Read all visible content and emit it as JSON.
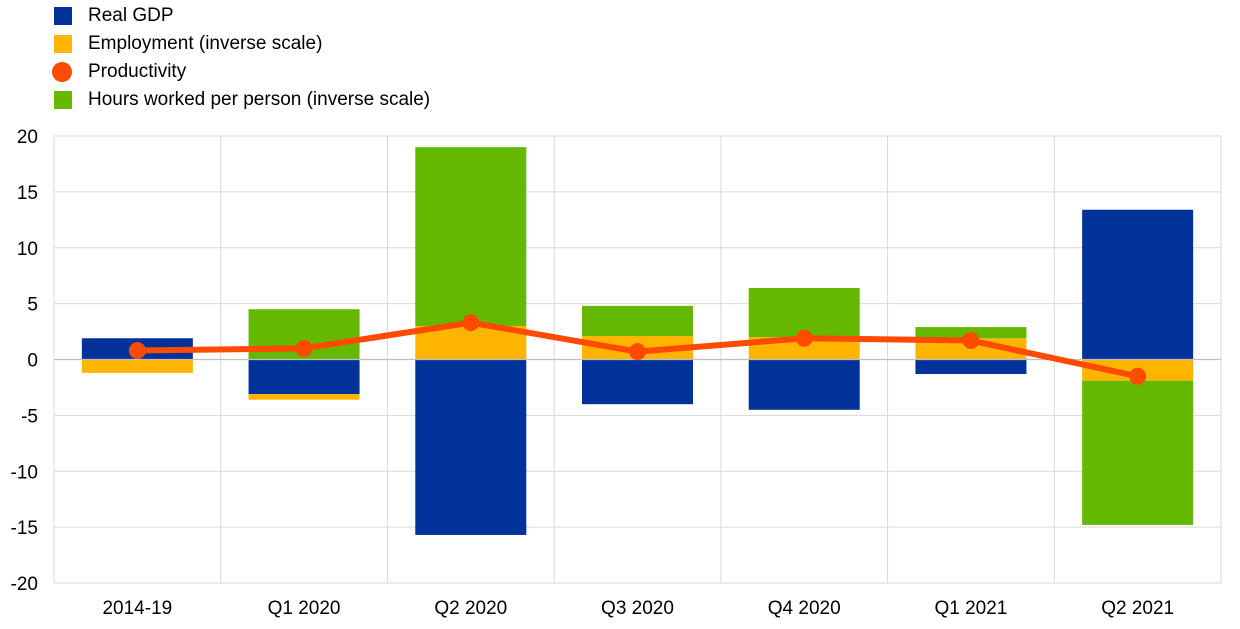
{
  "legend": [
    {
      "name": "Real GDP",
      "color": "#003299",
      "shape": "square"
    },
    {
      "name": "Employment (inverse scale)",
      "color": "#FFB400",
      "shape": "square"
    },
    {
      "name": "Productivity",
      "color": "#FF4B00",
      "shape": "circle"
    },
    {
      "name": "Hours worked per person (inverse scale)",
      "color": "#65B800",
      "shape": "square"
    }
  ],
  "chart_data": {
    "type": "bar",
    "stacked": true,
    "categories": [
      "2014-19",
      "Q1 2020",
      "Q2 2020",
      "Q3 2020",
      "Q4 2020",
      "Q1 2021",
      "Q2 2021"
    ],
    "ylim": [
      -20,
      20
    ],
    "yticks": [
      -20,
      -15,
      -10,
      -5,
      0,
      5,
      10,
      15,
      20
    ],
    "grid": true,
    "legend_position": "top-left",
    "series": [
      {
        "name": "Real GDP",
        "type": "bar",
        "color": "#003299",
        "values": [
          1.9,
          -3.1,
          -15.7,
          -4.0,
          -4.5,
          -1.3,
          13.4
        ]
      },
      {
        "name": "Employment (inverse scale)",
        "type": "bar",
        "color": "#FFB400",
        "values": [
          -1.2,
          -0.5,
          3.0,
          2.1,
          2.0,
          1.9,
          -1.9
        ]
      },
      {
        "name": "Hours worked per person (inverse scale)",
        "type": "bar",
        "color": "#65B800",
        "values": [
          0.0,
          4.5,
          16.0,
          2.7,
          4.4,
          1.0,
          -12.9
        ]
      },
      {
        "name": "Productivity",
        "type": "line",
        "color": "#FF4B00",
        "values": [
          0.8,
          1.0,
          3.3,
          0.7,
          1.9,
          1.7,
          -1.5
        ]
      }
    ]
  }
}
